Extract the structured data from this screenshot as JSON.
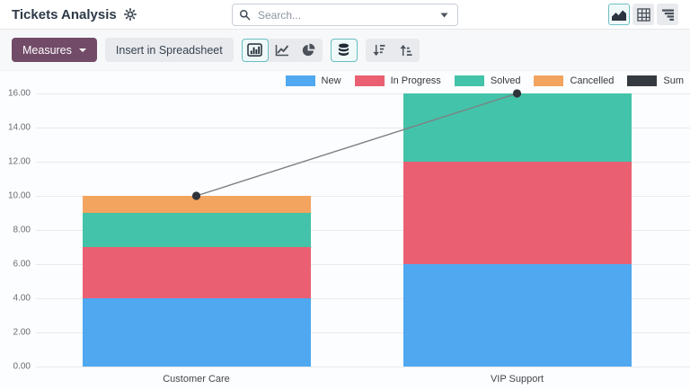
{
  "app": {
    "title": "Tickets Analysis"
  },
  "search": {
    "placeholder": "Search..."
  },
  "icons": [
    "gear-icon",
    "search-icon",
    "caret-down-icon",
    "graph-view-icon",
    "pivot-view-icon",
    "list-view-icon",
    "bar-chart-icon",
    "line-chart-icon",
    "pie-chart-icon",
    "stacked-icon",
    "sort-descending-icon",
    "sort-ascending-icon"
  ],
  "toolbar": {
    "measures_label": "Measures",
    "insert_label": "Insert in Spreadsheet"
  },
  "colors": {
    "accent_teal": "#67bec0",
    "measures_purple": "#714B67",
    "grid": "#e8e9ec",
    "sum_line": "#7e8184",
    "sum_dot": "#2e343a"
  },
  "chart_data": {
    "type": "bar",
    "stacked": true,
    "title": "",
    "xlabel": "",
    "ylabel": "",
    "categories": [
      "Customer Care",
      "VIP Support"
    ],
    "series": [
      {
        "name": "New",
        "type": "bar",
        "color": "#4FA8F0",
        "values": [
          4,
          6
        ]
      },
      {
        "name": "In Progress",
        "type": "bar",
        "color": "#EA6072",
        "values": [
          3,
          6
        ]
      },
      {
        "name": "Solved",
        "type": "bar",
        "color": "#43C3A9",
        "values": [
          2,
          4
        ]
      },
      {
        "name": "Cancelled",
        "type": "bar",
        "color": "#F3A45F",
        "values": [
          1,
          0
        ]
      },
      {
        "name": "Sum",
        "type": "line",
        "color": "#343A40",
        "values": [
          10,
          16
        ]
      }
    ],
    "ylim": [
      0,
      16
    ],
    "ytick_step": 2,
    "yticks": [
      "0.00",
      "2.00",
      "4.00",
      "6.00",
      "8.00",
      "10.00",
      "12.00",
      "14.00",
      "16.00"
    ],
    "grid": true,
    "legend_position": "top-right"
  }
}
